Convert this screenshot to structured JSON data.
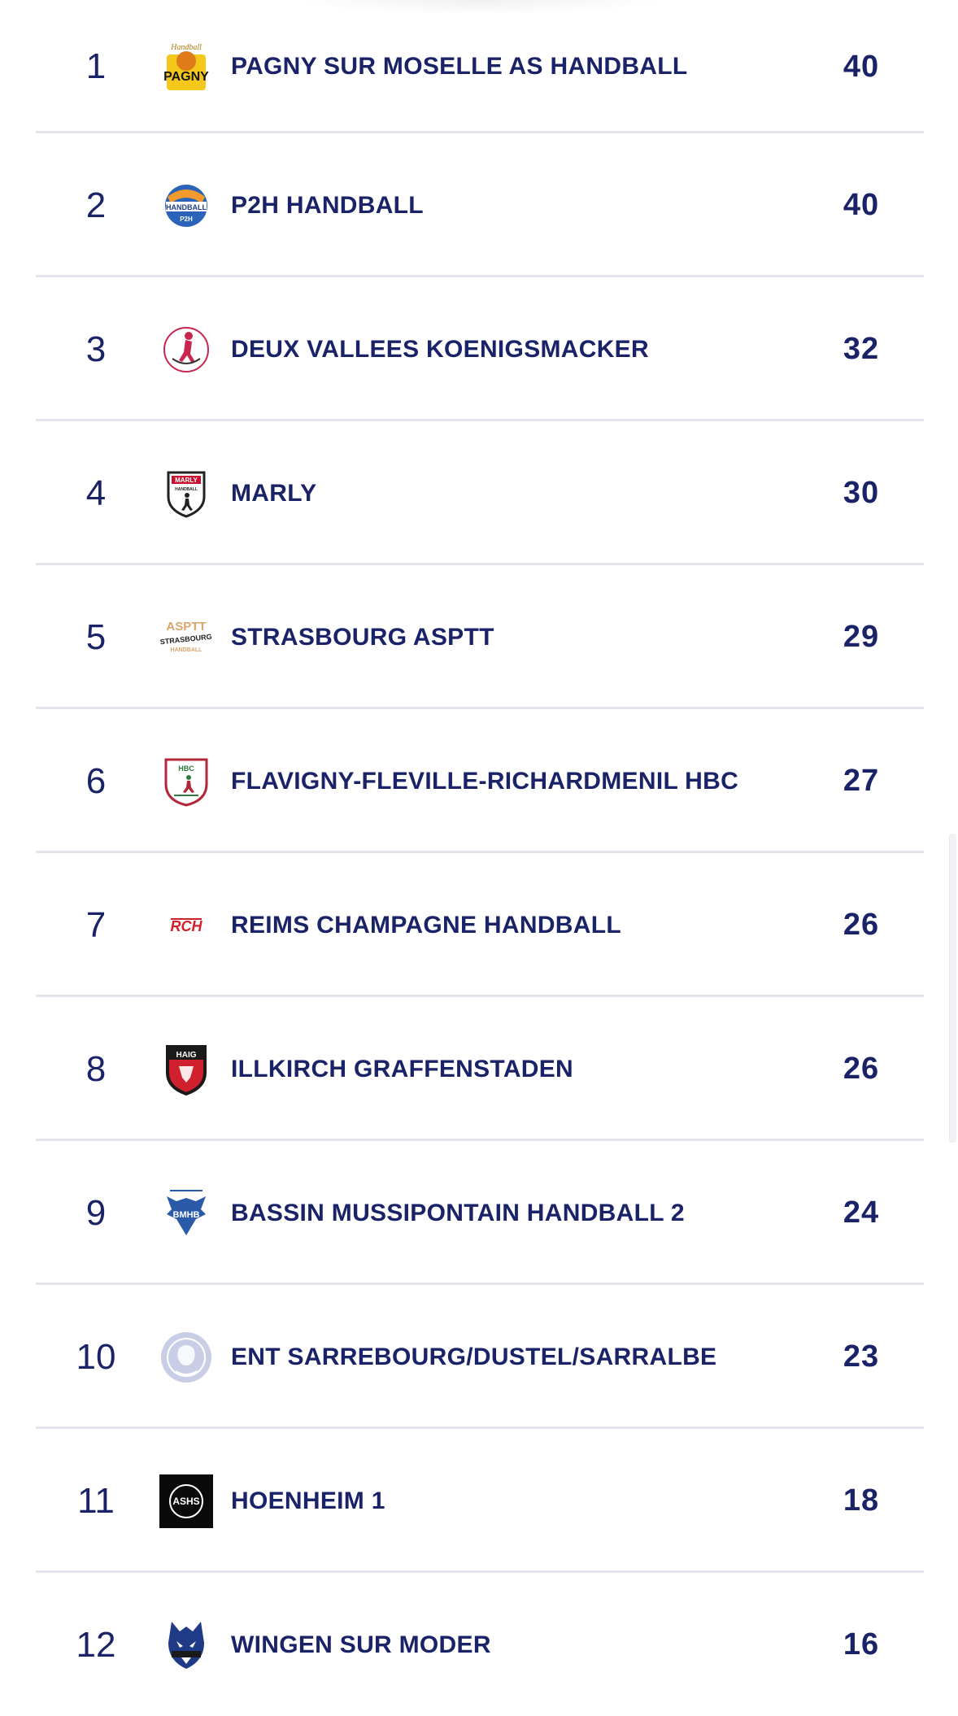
{
  "standings": [
    {
      "rank": "1",
      "team": "PAGNY SUR MOSELLE AS HANDBALL",
      "points": "40",
      "logo": "pagny-logo-icon"
    },
    {
      "rank": "2",
      "team": "P2H HANDBALL",
      "points": "40",
      "logo": "p2h-logo-icon"
    },
    {
      "rank": "3",
      "team": "DEUX VALLEES KOENIGSMACKER",
      "points": "32",
      "logo": "deux-vallees-logo-icon"
    },
    {
      "rank": "4",
      "team": "MARLY",
      "points": "30",
      "logo": "marly-logo-icon"
    },
    {
      "rank": "5",
      "team": "STRASBOURG ASPTT",
      "points": "29",
      "logo": "strasbourg-asptt-logo-icon"
    },
    {
      "rank": "6",
      "team": "FLAVIGNY-FLEVILLE-RICHARDMENIL HBC",
      "points": "27",
      "logo": "flavigny-logo-icon"
    },
    {
      "rank": "7",
      "team": "REIMS CHAMPAGNE HANDBALL",
      "points": "26",
      "logo": "reims-logo-icon"
    },
    {
      "rank": "8",
      "team": "ILLKIRCH GRAFFENSTADEN",
      "points": "26",
      "logo": "illkirch-logo-icon"
    },
    {
      "rank": "9",
      "team": "BASSIN MUSSIPONTAIN HANDBALL 2",
      "points": "24",
      "logo": "bassin-mussipontain-logo-icon"
    },
    {
      "rank": "10",
      "team": "ENT SARREBOURG/DUSTEL/SARRALBE",
      "points": "23",
      "logo": "sarrebourg-logo-icon"
    },
    {
      "rank": "11",
      "team": "HOENHEIM 1",
      "points": "18",
      "logo": "hoenheim-logo-icon"
    },
    {
      "rank": "12",
      "team": "WINGEN SUR MODER",
      "points": "16",
      "logo": "wingen-logo-icon"
    }
  ],
  "logo_text": {
    "pagny": "PAGNY",
    "pagny_top": "Handball",
    "p2h": "HANDBALL",
    "p2h_small": "P2H",
    "marly": "MARLY",
    "marly_small": "HANDBALL",
    "asptt": "ASPTT",
    "asptt_city": "STRASBOURG",
    "asptt_sub": "HANDBALL",
    "hbc": "HBC",
    "reims": "RCH",
    "haig": "HAIG",
    "bmhb": "BMHB",
    "ashs": "ASHS"
  },
  "colors": {
    "text": "#1b2368",
    "divider": "#e3e5ee",
    "background": "#ffffff"
  }
}
